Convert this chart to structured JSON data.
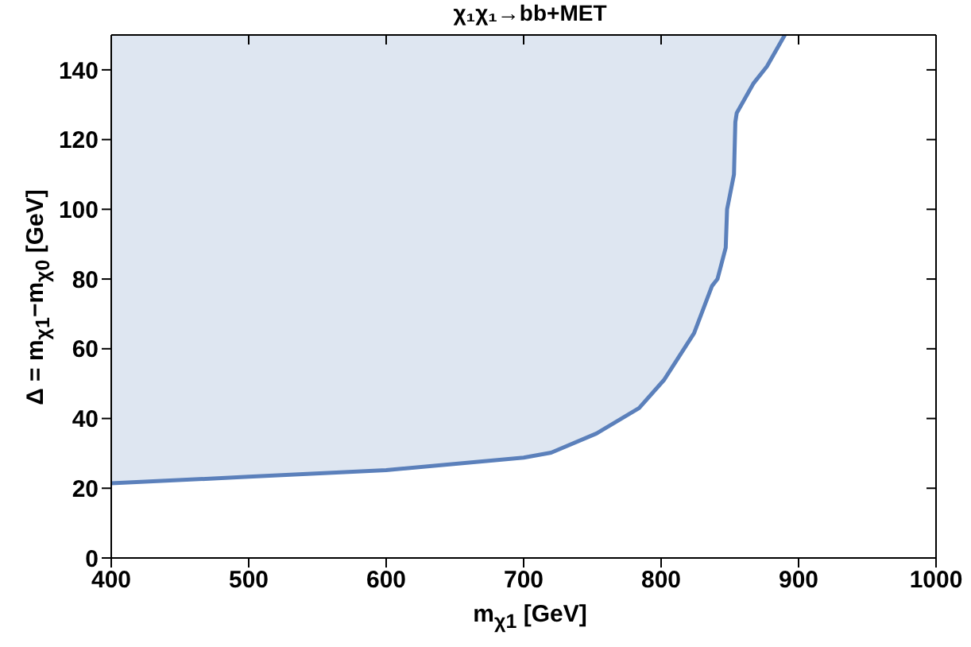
{
  "chart_data": {
    "type": "line",
    "title": "χ₁χ₁→bb+MET",
    "xlabel": "m$_{χ1}$ [GeV]",
    "ylabel": "Δ = m$_{χ1}$−m$_{χ0}$ [GeV]",
    "x": [
      400,
      500,
      600,
      700,
      720,
      753,
      784,
      802,
      824,
      837,
      841,
      847,
      848,
      853,
      854,
      855,
      867,
      877,
      890
    ],
    "series": [
      {
        "color": "#5b80bb",
        "values": [
          21.4,
          23.3,
          25.2,
          28.8,
          30.2,
          35.7,
          43,
          51,
          64.5,
          78,
          80,
          89,
          100,
          110,
          125,
          127.6,
          136,
          141,
          150
        ],
        "lower": [
          21.4,
          23.3,
          25.2,
          28.8,
          30.2,
          35.7,
          43,
          51,
          64.5,
          78,
          80,
          89,
          100,
          110,
          125,
          127.6,
          136,
          141,
          150
        ],
        "upper": [
          150,
          150,
          150,
          150,
          150,
          150,
          150,
          150,
          150,
          150,
          150,
          150,
          150,
          150,
          150,
          150,
          150,
          150,
          150
        ]
      }
    ],
    "xlim": [
      400,
      1000
    ],
    "xticks": [
      400,
      500,
      600,
      700,
      800,
      900,
      1000
    ],
    "ylim": [
      0,
      150
    ],
    "yticks": [
      0,
      20,
      40,
      60,
      80,
      100,
      120,
      140
    ]
  }
}
